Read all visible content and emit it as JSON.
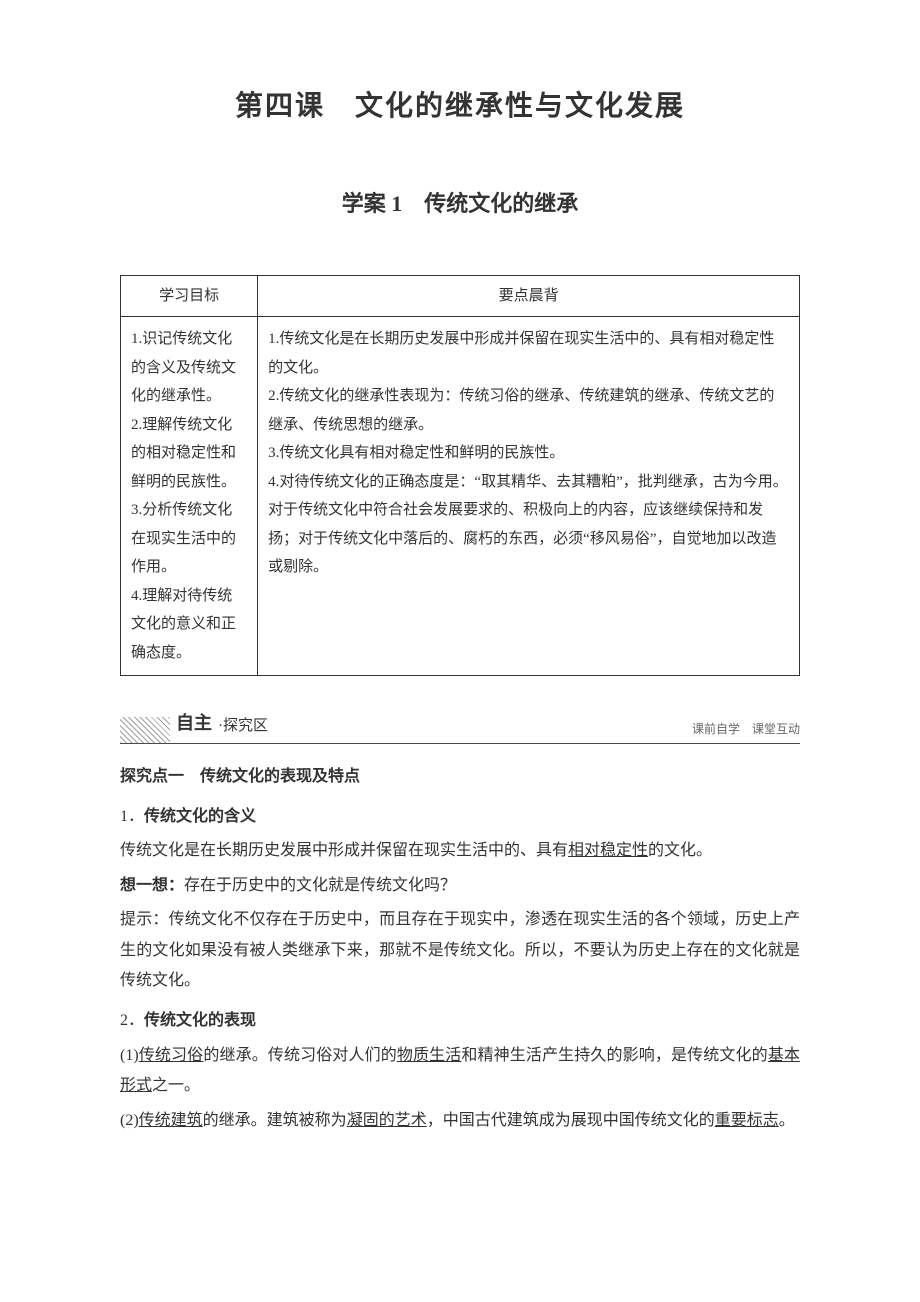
{
  "colors": {
    "text": "#333333",
    "border": "#333333",
    "sectionBorder": "#494949",
    "hatch": "#606060",
    "sectionRight": "#666666",
    "background": "#ffffff"
  },
  "fonts": {
    "body_family": "SimSun",
    "main_title_size": 28,
    "sub_title_size": 22,
    "body_size": 16,
    "table_size": 15,
    "section_label_size": 18,
    "section_right_size": 12
  },
  "mainTitle": "第四课　文化的继承性与文化发展",
  "subTitle": "学案 1　传统文化的继承",
  "table": {
    "headers": [
      "学习目标",
      "要点晨背"
    ],
    "leftCell": "1.识记传统文化的含义及传统文化的继承性。\n2.理解传统文化的相对稳定性和鲜明的民族性。\n3.分析传统文化在现实生活中的作用。\n4.理解对待传统文化的意义和正确态度。",
    "rightCell": "1.传统文化是在长期历史发展中形成并保留在现实生活中的、具有相对稳定性的文化。\n2.传统文化的继承性表现为：传统习俗的继承、传统建筑的继承、传统文艺的继承、传统思想的继承。\n3.传统文化具有相对稳定性和鲜明的民族性。\n4.对待传统文化的正确态度是：“取其精华、去其糟粕”，批判继承，古为今用。对于传统文化中符合社会发展要求的、积极向上的内容，应该继续保持和发扬；对于传统文化中落后的、腐朽的东西，必须“移风易俗”，自觉地加以改造或剔除。"
  },
  "sectionHeader": {
    "label": "自主",
    "sub": "·探究区",
    "right": "课前自学　课堂互动"
  },
  "topic1": {
    "heading": "探究点一　传统文化的表现及特点",
    "item1": {
      "num": "1．",
      "title": "传统文化的含义",
      "para_before": "传统文化是在长期历史发展中形成并保留在现实生活中的、具有",
      "para_u": "相对稳定性",
      "para_after": "的文化。",
      "think_label": "想一想：",
      "think_q": "存在于历史中的文化就是传统文化吗？",
      "hint_label": "提示：",
      "hint_body": "传统文化不仅存在于历史中，而且存在于现实中，渗透在现实生活的各个领域，历史上产生的文化如果没有被人类继承下来，那就不是传统文化。所以，不要认为历史上存在的文化就是传统文化。"
    },
    "item2": {
      "num": "2．",
      "title": "传统文化的表现",
      "p1": {
        "a": "(1)",
        "u1": "传统习俗",
        "b": "的继承。传统习俗对人们的",
        "u2": "物质生活",
        "c": "和精神生活产生持久的影响，是传统文化的",
        "u3": "基本形式",
        "d": "之一。"
      },
      "p2": {
        "a": "(2)",
        "u1": "传统建筑",
        "b": "的继承。建筑被称为",
        "u2": "凝固的艺术",
        "c": "，中国古代建筑成为展现中国传统文化的",
        "u3": "重要标志",
        "d": "。"
      }
    }
  }
}
